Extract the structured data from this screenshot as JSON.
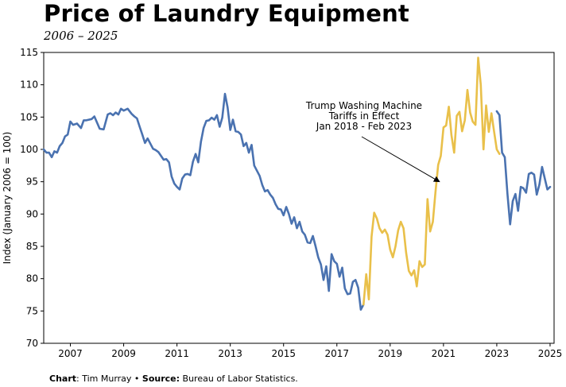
{
  "title": "Price of Laundry Equipment",
  "subtitle": "2006 – 2025",
  "footer": {
    "chart_label": "Chart",
    "chart_value": ": Tim Murray",
    "separator": " • ",
    "source_label": "Source:",
    "source_value": " Bureau of Labor Statistics."
  },
  "colors": {
    "pre_tariff": "#4a72b0",
    "tariff": "#e9c04a",
    "axis": "#000000"
  },
  "chart_data": {
    "type": "line",
    "title": "Price of Laundry Equipment",
    "subtitle": "2006 – 2025",
    "xlabel": "",
    "ylabel": "Index (January 2006 = 100)",
    "xlim": [
      2006.0,
      2025.15
    ],
    "ylim": [
      70,
      115
    ],
    "xticks": [
      2007,
      2009,
      2011,
      2013,
      2015,
      2017,
      2019,
      2021,
      2023,
      2025
    ],
    "yticks": [
      70,
      75,
      80,
      85,
      90,
      95,
      100,
      105,
      110,
      115
    ],
    "grid": false,
    "legend": "none",
    "annotation": {
      "lines": [
        "Trump Washing Machine",
        "Tariffs in Effect",
        "Jan 2018 - Feb 2023"
      ],
      "arrow_target": [
        2020.85,
        95.0
      ]
    },
    "series": [
      {
        "color": "#4a72b0",
        "x": [
          2006.0,
          2006.1,
          2006.2,
          2006.3,
          2006.4,
          2006.5,
          2006.6,
          2006.7,
          2006.8,
          2006.9,
          2007.0,
          2007.1,
          2007.25,
          2007.4,
          2007.5,
          2007.6,
          2007.8,
          2007.9,
          2008.1,
          2008.25,
          2008.4,
          2008.5,
          2008.6,
          2008.7,
          2008.8,
          2008.9,
          2009.0,
          2009.15,
          2009.3,
          2009.4,
          2009.5,
          2009.6,
          2009.7,
          2009.8,
          2009.9,
          2010.0,
          2010.1,
          2010.2,
          2010.3,
          2010.5,
          2010.6,
          2010.7,
          2010.8,
          2010.9,
          2011.0,
          2011.1,
          2011.2,
          2011.3,
          2011.4,
          2011.5,
          2011.6,
          2011.7,
          2011.8,
          2011.9,
          2012.0,
          2012.1,
          2012.2,
          2012.3,
          2012.4,
          2012.5,
          2012.6,
          2012.7,
          2012.8,
          2012.9,
          2013.0,
          2013.1,
          2013.2,
          2013.3,
          2013.4,
          2013.5,
          2013.6,
          2013.7,
          2013.8,
          2013.9,
          2014.0,
          2014.1,
          2014.2,
          2014.3,
          2014.4,
          2014.5,
          2014.6,
          2014.7,
          2014.8,
          2014.9,
          2015.0,
          2015.1,
          2015.2,
          2015.3,
          2015.4,
          2015.5,
          2015.6,
          2015.7,
          2015.8,
          2015.9,
          2016.0,
          2016.1,
          2016.2,
          2016.3,
          2016.4,
          2016.5,
          2016.6,
          2016.7,
          2016.8,
          2016.9,
          2017.0,
          2017.1,
          2017.2,
          2017.3,
          2017.4,
          2017.5,
          2017.6,
          2017.7,
          2017.8,
          2017.9,
          2018.0
        ],
        "y": [
          100.0,
          99.5,
          99.5,
          98.8,
          99.7,
          99.5,
          100.5,
          101.0,
          102.0,
          102.3,
          104.3,
          103.8,
          104.0,
          103.3,
          104.5,
          104.5,
          104.7,
          105.1,
          103.2,
          103.1,
          105.4,
          105.6,
          105.3,
          105.7,
          105.4,
          106.3,
          106.0,
          106.3,
          105.5,
          105.1,
          104.8,
          103.5,
          102.3,
          101.0,
          101.7,
          100.9,
          100.1,
          99.9,
          99.6,
          98.4,
          98.5,
          98.0,
          95.8,
          94.7,
          94.2,
          93.8,
          95.5,
          96.1,
          96.2,
          96.0,
          98.1,
          99.3,
          98.0,
          101.2,
          103.3,
          104.4,
          104.5,
          104.9,
          104.6,
          105.3,
          103.5,
          104.9,
          108.6,
          106.5,
          103.0,
          104.6,
          102.8,
          102.7,
          102.3,
          100.5,
          101.0,
          99.5,
          100.7,
          97.5,
          96.7,
          95.9,
          94.5,
          93.5,
          93.7,
          93.0,
          92.5,
          91.5,
          90.8,
          90.7,
          89.8,
          91.1,
          90.0,
          88.5,
          89.5,
          87.8,
          88.8,
          87.3,
          86.8,
          85.6,
          85.5,
          86.6,
          85.0,
          83.3,
          82.2,
          79.8,
          81.9,
          78.1,
          83.8,
          82.7,
          82.3,
          80.3,
          81.7,
          78.5,
          77.6,
          77.7,
          79.5,
          79.8,
          78.6,
          75.2,
          76.0
        ]
      },
      {
        "color": "#e9c04a",
        "x": [
          2018.0,
          2018.1,
          2018.2,
          2018.3,
          2018.4,
          2018.5,
          2018.6,
          2018.7,
          2018.8,
          2018.9,
          2019.0,
          2019.1,
          2019.2,
          2019.3,
          2019.4,
          2019.5,
          2019.6,
          2019.7,
          2019.8,
          2019.9,
          2020.0,
          2020.1,
          2020.2,
          2020.3,
          2020.4,
          2020.5,
          2020.6,
          2020.7,
          2020.8,
          2020.9,
          2021.0,
          2021.1,
          2021.2,
          2021.3,
          2021.4,
          2021.5,
          2021.6,
          2021.7,
          2021.8,
          2021.9,
          2022.0,
          2022.1,
          2022.2,
          2022.3,
          2022.4,
          2022.5,
          2022.6,
          2022.7,
          2022.8,
          2022.9,
          2023.0,
          2023.1
        ],
        "y": [
          76.0,
          80.7,
          76.8,
          86.5,
          90.2,
          89.3,
          87.8,
          87.1,
          87.6,
          86.8,
          84.5,
          83.3,
          85.0,
          87.5,
          88.8,
          87.8,
          84.0,
          81.2,
          80.5,
          81.3,
          78.8,
          82.7,
          81.8,
          82.2,
          92.3,
          87.3,
          88.8,
          93.4,
          97.6,
          99.0,
          103.4,
          103.7,
          106.6,
          102.2,
          99.5,
          105.2,
          105.8,
          102.8,
          104.5,
          109.2,
          105.7,
          104.3,
          103.8,
          114.2,
          110.0,
          100.0,
          106.8,
          102.7,
          105.6,
          102.7,
          100.0,
          99.3
        ]
      },
      {
        "color": "#4a72b0",
        "x": [
          2023.0,
          2023.1,
          2023.2,
          2023.3,
          2023.4,
          2023.5,
          2023.6,
          2023.7,
          2023.8,
          2023.9,
          2024.0,
          2024.1,
          2024.2,
          2024.3,
          2024.4,
          2024.5,
          2024.6,
          2024.7,
          2024.8,
          2024.9,
          2025.0
        ],
        "y": [
          105.9,
          105.3,
          99.5,
          98.8,
          93.2,
          88.4,
          92.0,
          93.1,
          90.5,
          94.2,
          94.0,
          93.3,
          96.2,
          96.4,
          96.1,
          93.0,
          94.6,
          97.3,
          95.5,
          93.8,
          94.2
        ]
      }
    ]
  }
}
